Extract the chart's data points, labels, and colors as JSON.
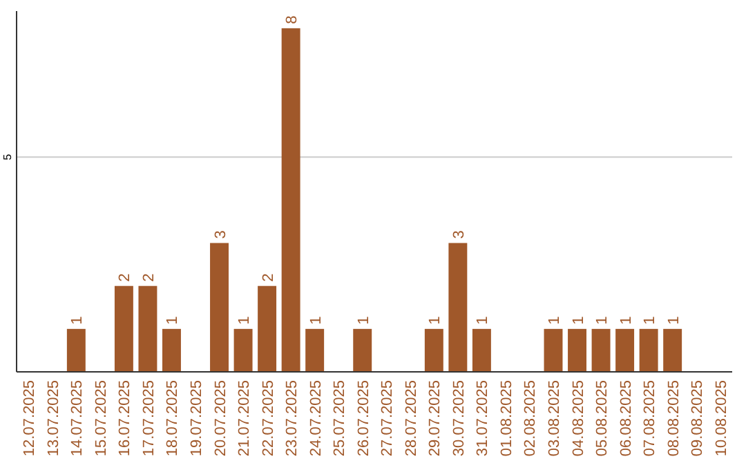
{
  "chart_data": {
    "type": "bar",
    "categories": [
      "12.07.2025",
      "13.07.2025",
      "14.07.2025",
      "15.07.2025",
      "16.07.2025",
      "17.07.2025",
      "18.07.2025",
      "19.07.2025",
      "20.07.2025",
      "21.07.2025",
      "22.07.2025",
      "23.07.2025",
      "24.07.2025",
      "25.07.2025",
      "26.07.2025",
      "27.07.2025",
      "28.07.2025",
      "29.07.2025",
      "30.07.2025",
      "31.07.2025",
      "01.08.2025",
      "02.08.2025",
      "03.08.2025",
      "04.08.2025",
      "05.08.2025",
      "06.08.2025",
      "07.08.2025",
      "08.08.2025",
      "09.08.2025",
      "10.08.2025"
    ],
    "values": [
      null,
      null,
      1,
      null,
      2,
      2,
      1,
      null,
      3,
      1,
      2,
      8,
      1,
      null,
      1,
      null,
      null,
      1,
      3,
      1,
      null,
      null,
      1,
      1,
      1,
      1,
      1,
      1,
      null,
      null
    ],
    "color": "#a0582a",
    "ylim": [
      0,
      8.4
    ],
    "yticks": [
      5
    ],
    "grid": "y",
    "data_labels": true
  }
}
